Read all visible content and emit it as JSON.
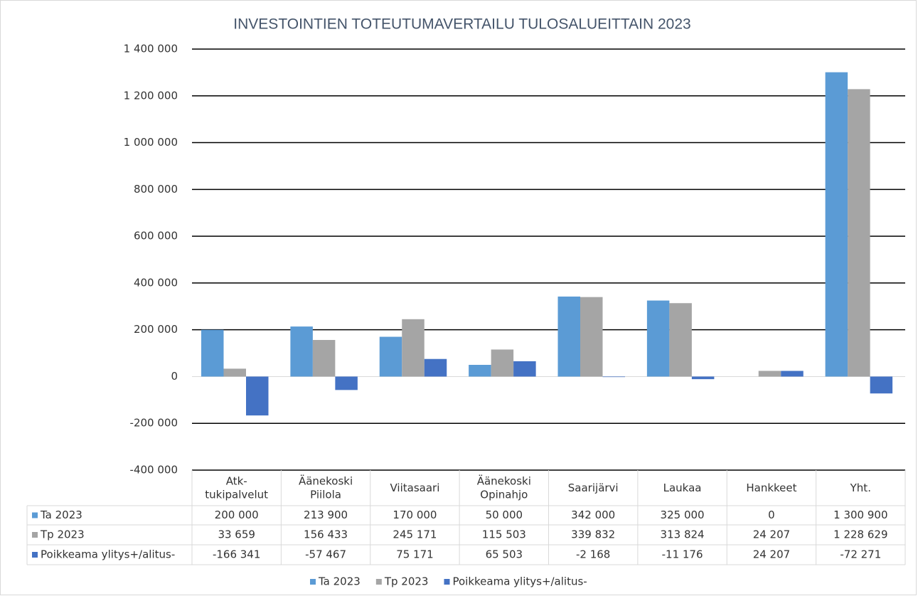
{
  "chart_data": {
    "type": "bar",
    "title": "INVESTOINTIEN TOTEUTUMAVERTAILU TULOSALUEITTAIN 2023",
    "categories": [
      "Atk-\ntukipalvelut",
      "Äänekoski\nPiilola",
      "Viitasaari",
      "Äänekoski\nOpinahjo",
      "Saarijärvi",
      "Laukaa",
      "Hankkeet",
      "Yht."
    ],
    "series": [
      {
        "name": "Ta 2023",
        "color": "#5b9bd5",
        "values": [
          200000,
          213900,
          170000,
          50000,
          342000,
          325000,
          0,
          1300900
        ],
        "value_labels": [
          "200 000",
          "213 900",
          "170 000",
          "50 000",
          "342 000",
          "325 000",
          "0",
          "1 300 900"
        ]
      },
      {
        "name": "Tp 2023",
        "color": "#a5a5a5",
        "values": [
          33659,
          156433,
          245171,
          115503,
          339832,
          313824,
          24207,
          1228629
        ],
        "value_labels": [
          "33 659",
          "156 433",
          "245 171",
          "115 503",
          "339 832",
          "313 824",
          "24 207",
          "1 228 629"
        ]
      },
      {
        "name": "Poikkeama ylitys+/alitus-",
        "color": "#4472c4",
        "values": [
          -166341,
          -57467,
          75171,
          65503,
          -2168,
          -11176,
          24207,
          -72271
        ],
        "value_labels": [
          "-166 341",
          "-57 467",
          "75 171",
          "65 503",
          "-2 168",
          "-11 176",
          "24 207",
          "-72 271"
        ]
      }
    ],
    "ylim": [
      -400000,
      1400000
    ],
    "yticks": [
      {
        "value": -400000,
        "label": "-400 000"
      },
      {
        "value": -200000,
        "label": "-200 000"
      },
      0,
      {
        "value": 200000,
        "label": "200 000"
      },
      {
        "value": 400000,
        "label": "400 000"
      },
      {
        "value": 600000,
        "label": "600 000"
      },
      {
        "value": 800000,
        "label": "800 000"
      },
      {
        "value": 1000000,
        "label": "1 000 000"
      },
      {
        "value": 1200000,
        "label": "1 200 000"
      },
      {
        "value": 1400000,
        "label": "1 400 000"
      }
    ],
    "grid": true,
    "legend": "bottom"
  }
}
